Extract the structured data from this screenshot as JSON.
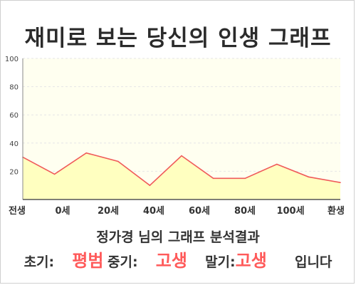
{
  "title": "재미로 보는 당신의 인생 그래프",
  "subtitle": "정가경 님의 그래프 분석결과",
  "result": {
    "early_label": "초기:",
    "early_value": "평범",
    "mid_label": "중기:",
    "mid_value": "고생",
    "late_label": "말기:",
    "late_value": "고생",
    "suffix": "입니다"
  },
  "colors": {
    "line": "#f05a5a",
    "plot_bg": "#fffff0",
    "area_fill": "#ffffc0",
    "grid": "#e6e6e6",
    "highlight": "#ff5a5a"
  },
  "chart_data": {
    "type": "area",
    "title": "",
    "xlabel": "",
    "ylabel": "",
    "ylim": [
      0,
      100
    ],
    "yticks": [
      "100",
      "80",
      "60",
      "40",
      "20"
    ],
    "xticks": [
      "전생",
      "0세",
      "20세",
      "40세",
      "60세",
      "80세",
      "100세",
      "환생"
    ],
    "grid": true,
    "series": [
      {
        "values": [
          30,
          18,
          33,
          27,
          10,
          31,
          15,
          15,
          25,
          16,
          12
        ]
      }
    ]
  }
}
